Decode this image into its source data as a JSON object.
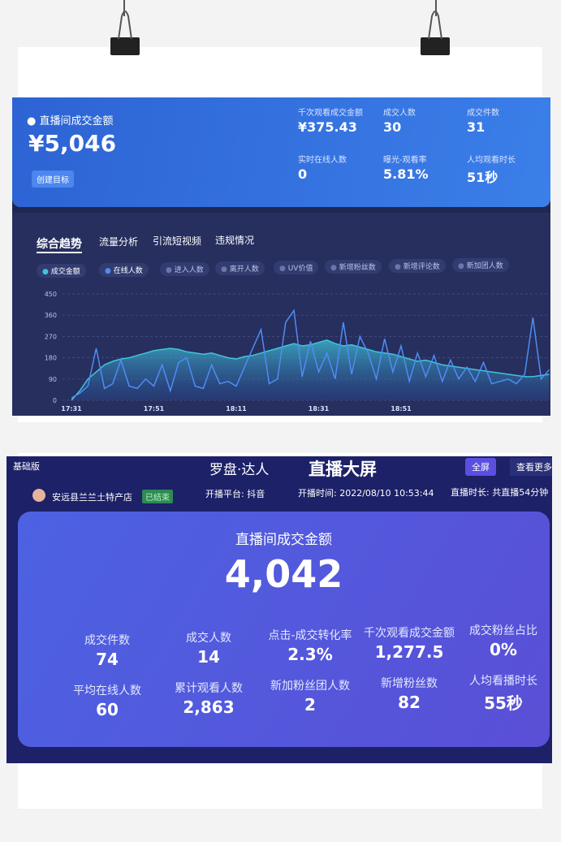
{
  "top": {
    "title": "直播间成交金额",
    "amount": "¥5,046",
    "button": "创建目标",
    "metrics": [
      {
        "label": "千次观看成交金额",
        "value": "¥375.43"
      },
      {
        "label": "成交人数",
        "value": "30"
      },
      {
        "label": "成交件数",
        "value": "31"
      },
      {
        "label": "实时在线人数",
        "value": "0"
      },
      {
        "label": "曝光-观看率",
        "value": "5.81%"
      },
      {
        "label": "人均观看时长",
        "value": "51秒"
      }
    ],
    "tabs": [
      "综合趋势",
      "流量分析",
      "引流短视频",
      "违规情况"
    ],
    "chips": [
      "进入人数",
      "离开人数",
      "UV价值",
      "新增粉丝数",
      "新增评论数",
      "新加团人数"
    ]
  },
  "chart_data": {
    "type": "line",
    "categories": [
      "17:31",
      null,
      null,
      null,
      null,
      null,
      null,
      null,
      null,
      null,
      "17:51",
      null,
      null,
      null,
      null,
      null,
      null,
      null,
      null,
      null,
      "18:11",
      null,
      null,
      null,
      null,
      null,
      null,
      null,
      null,
      null,
      "18:31",
      null,
      null,
      null,
      null,
      null,
      null,
      null,
      null,
      null,
      "18:51",
      null,
      null,
      null,
      null,
      null,
      null,
      null,
      null,
      null,
      null,
      null,
      null,
      null,
      null,
      null,
      null,
      null,
      null
    ],
    "series": [
      {
        "name": "成交金额",
        "color": "#3fc6d8",
        "values": [
          0,
          40,
          90,
          120,
          150,
          165,
          175,
          180,
          190,
          200,
          210,
          215,
          220,
          215,
          205,
          200,
          195,
          200,
          190,
          180,
          175,
          185,
          190,
          200,
          210,
          220,
          230,
          240,
          230,
          235,
          245,
          255,
          240,
          230,
          235,
          225,
          215,
          205,
          200,
          195,
          185,
          175,
          165,
          170,
          160,
          150,
          145,
          140,
          135,
          130,
          125,
          120,
          115,
          110,
          105,
          100,
          100,
          105,
          110
        ]
      },
      {
        "name": "在线人数",
        "color": "#4f8cf5",
        "values": [
          10,
          30,
          60,
          220,
          50,
          70,
          170,
          60,
          50,
          90,
          60,
          150,
          40,
          160,
          180,
          60,
          50,
          150,
          70,
          80,
          60,
          140,
          220,
          300,
          70,
          90,
          330,
          380,
          100,
          250,
          120,
          200,
          90,
          330,
          110,
          270,
          200,
          90,
          260,
          120,
          230,
          80,
          200,
          100,
          190,
          80,
          170,
          90,
          140,
          80,
          160,
          70,
          80,
          90,
          70,
          110,
          350,
          90,
          130
        ]
      }
    ],
    "ylim": [
      0,
      450
    ],
    "yticks": [
      0,
      90,
      180,
      270,
      360,
      450
    ],
    "grid": true
  },
  "bottom": {
    "edition": "基础版",
    "logo": "罗盘·达人",
    "screen_title": "直播大屏",
    "fullscreen": "全屏",
    "more": "查看更多",
    "store": "安远县兰兰土特产店",
    "status": "已结束",
    "platform": "开播平台: 抖音",
    "start_time": "开播时间: 2022/08/10 10:53:44",
    "duration": "直播时长: 共直播54分钟",
    "title": "直播间成交金额",
    "amount": "4,042",
    "metrics": [
      {
        "label": "成交件数",
        "value": "74"
      },
      {
        "label": "成交人数",
        "value": "14"
      },
      {
        "label": "点击-成交转化率",
        "value": "2.3%"
      },
      {
        "label": "千次观看成交金额",
        "value": "1,277.5"
      },
      {
        "label": "成交粉丝占比",
        "value": "0%"
      },
      {
        "label": "平均在线人数",
        "value": "60"
      },
      {
        "label": "累计观看人数",
        "value": "2,863"
      },
      {
        "label": "新加粉丝团人数",
        "value": "2"
      },
      {
        "label": "新增粉丝数",
        "value": "82"
      },
      {
        "label": "人均看播时长",
        "value": "55秒"
      }
    ]
  }
}
